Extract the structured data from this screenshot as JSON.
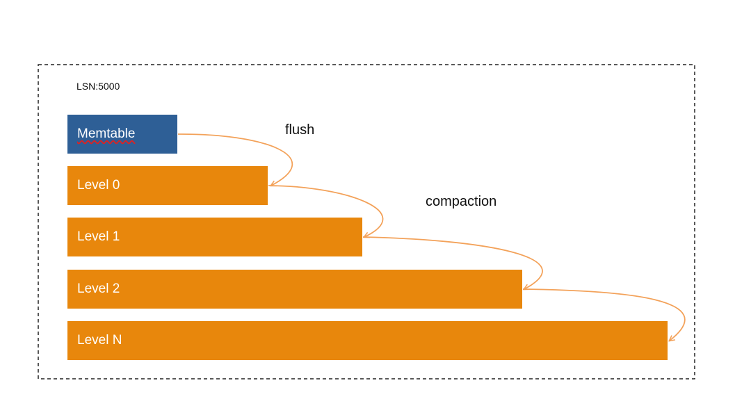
{
  "lsn_label": "LSN:5000",
  "nodes": [
    {
      "label": "Memtable"
    },
    {
      "label": "Level 0"
    },
    {
      "label": "Level 1"
    },
    {
      "label": "Level 2"
    },
    {
      "label": "Level N"
    }
  ],
  "edge_labels": {
    "flush": "flush",
    "compaction": "compaction"
  }
}
